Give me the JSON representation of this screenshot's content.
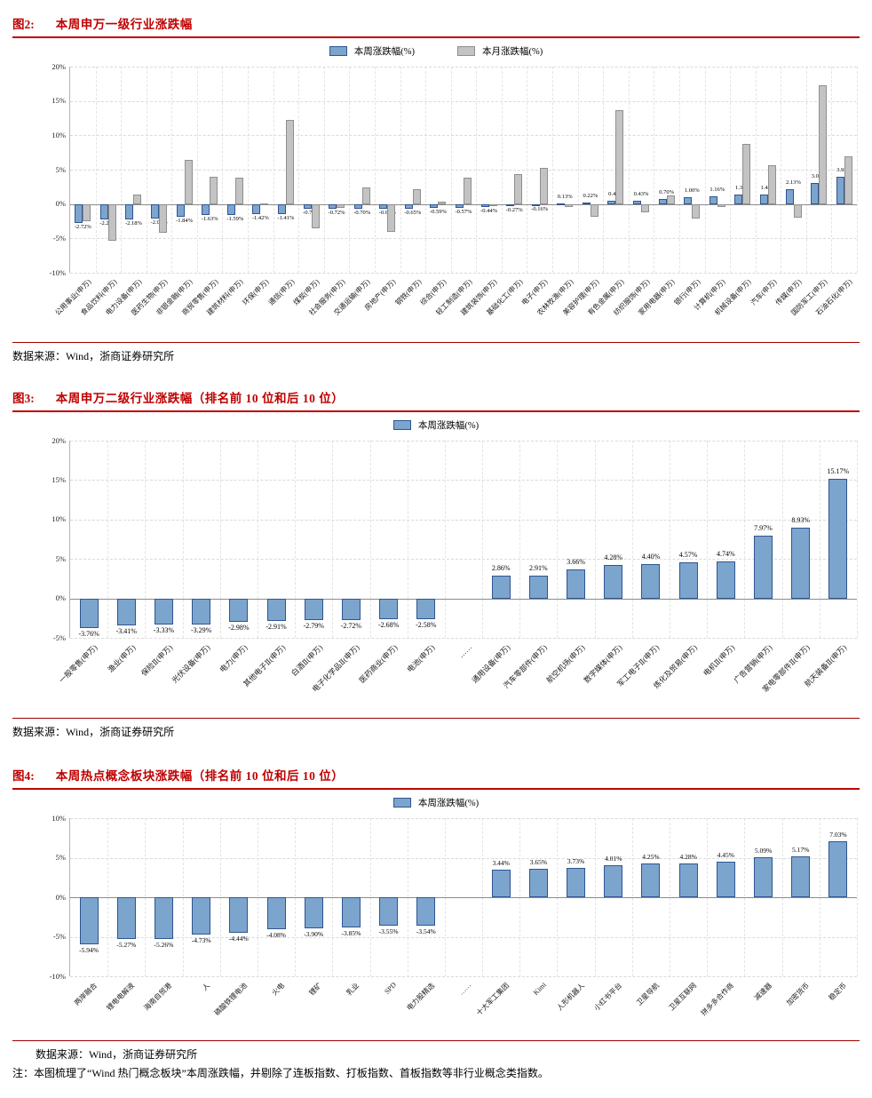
{
  "figures": [
    {
      "label": "图2:",
      "title": "本周申万一级行业涨跌幅",
      "source": "数据来源：Wind，浙商证券研究所"
    },
    {
      "label": "图3:",
      "title": "本周申万二级行业涨跌幅（排名前 10 位和后 10 位）",
      "source": "数据来源：Wind，浙商证券研究所"
    },
    {
      "label": "图4:",
      "title": "本周热点概念板块涨跌幅（排名前 10 位和后 10 位）",
      "source": "数据来源：Wind，浙商证券研究所",
      "note": "注：本图梳理了“Wind 热门概念板块”本周涨跌幅，并剔除了连板指数、打板指数、首板指数等非行业概念类指数。"
    }
  ],
  "colors": {
    "accent_red": "#bf0000",
    "bar_blue": "#7ca5ce",
    "bar_blue_border": "#2f5490",
    "bar_gray": "#c3c3c3",
    "bar_gray_border": "#8f8f8f"
  },
  "chart_data": [
    {
      "type": "bar",
      "title": "本周申万一级行业涨跌幅",
      "legend_position": "top",
      "grid": true,
      "ylim": [
        -10,
        20
      ],
      "yticks": [
        20,
        15,
        10,
        5,
        0,
        -5,
        -10
      ],
      "categories": [
        "公用事业(申万)",
        "食品饮料(申万)",
        "电力设备(申万)",
        "医药生物(申万)",
        "非银金融(申万)",
        "商贸零售(申万)",
        "建筑材料(申万)",
        "环保(申万)",
        "通信(申万)",
        "煤炭(申万)",
        "社会服务(申万)",
        "交通运输(申万)",
        "房地产(申万)",
        "钢铁(申万)",
        "综合(申万)",
        "轻工制造(申万)",
        "建筑装饰(申万)",
        "基础化工(申万)",
        "电子(申万)",
        "农林牧渔(申万)",
        "美容护理(申万)",
        "有色金属(申万)",
        "纺织服饰(申万)",
        "家用电器(申万)",
        "银行(申万)",
        "计算机(申万)",
        "机械设备(申万)",
        "汽车(申万)",
        "传媒(申万)",
        "国防军工(申万)",
        "石油石化(申万)"
      ],
      "series": [
        {
          "name": "本周涨跌幅(%)",
          "color": "#7ca5ce",
          "border": "#2f5490",
          "data_labels": true,
          "values": [
            -2.72,
            -2.26,
            -2.18,
            -2.06,
            -1.84,
            -1.63,
            -1.59,
            -1.42,
            -1.41,
            -0.74,
            -0.72,
            -0.7,
            -0.69,
            -0.65,
            -0.59,
            -0.57,
            -0.44,
            -0.27,
            -0.16,
            0.13,
            0.22,
            0.41,
            0.43,
            0.7,
            1.0,
            1.16,
            1.32,
            1.44,
            2.13,
            3.05,
            3.92
          ]
        },
        {
          "name": "本月涨跌幅(%)",
          "color": "#c3c3c3",
          "border": "#8f8f8f",
          "data_labels": false,
          "values": [
            -2.5,
            -5.3,
            1.4,
            -4.2,
            6.4,
            4.0,
            3.8,
            0.1,
            12.2,
            -3.5,
            -0.6,
            2.4,
            -4.0,
            2.2,
            0.3,
            3.8,
            -0.1,
            4.4,
            5.2,
            -0.4,
            -1.8,
            13.7,
            -1.2,
            1.3,
            -2.1,
            -0.4,
            8.7,
            5.7,
            -2.0,
            17.3,
            7.0
          ]
        }
      ]
    },
    {
      "type": "bar",
      "title": "本周申万二级行业涨跌幅（排名前 10 位和后 10 位）",
      "legend_position": "top",
      "grid": true,
      "ylim": [
        -5,
        20
      ],
      "yticks": [
        20,
        15,
        10,
        5,
        0,
        -5
      ],
      "categories": [
        "一般零售(申万)",
        "渔业(申万)",
        "保险Ⅱ(申万)",
        "光伏设备(申万)",
        "电力(申万)",
        "其他电子Ⅱ(申万)",
        "白酒Ⅱ(申万)",
        "电子化学品Ⅱ(申万)",
        "医药商业(申万)",
        "电池(申万)",
        "……",
        "通用设备(申万)",
        "汽车零部件(申万)",
        "航空机场(申万)",
        "数字媒体(申万)",
        "军工电子Ⅱ(申万)",
        "炼化及贸易(申万)",
        "电机Ⅱ(申万)",
        "广告营销(申万)",
        "家电零部件Ⅱ(申万)",
        "航天装备Ⅱ(申万)"
      ],
      "series": [
        {
          "name": "本周涨跌幅(%)",
          "color": "#7ca5ce",
          "border": "#2f5490",
          "data_labels": true,
          "values": [
            -3.76,
            -3.41,
            -3.33,
            -3.29,
            -2.98,
            -2.91,
            -2.79,
            -2.72,
            -2.68,
            -2.58,
            null,
            2.86,
            2.91,
            3.66,
            4.28,
            4.4,
            4.57,
            4.74,
            7.97,
            8.93,
            15.17
          ]
        }
      ]
    },
    {
      "type": "bar",
      "title": "本周热点概念板块涨跌幅（排名前 10 位和后 10 位）",
      "legend_position": "top",
      "grid": true,
      "ylim": [
        -10,
        10
      ],
      "yticks": [
        10,
        5,
        0,
        -5,
        -10
      ],
      "categories": [
        "两岸融合",
        "锂电电解液",
        "海南自贸港",
        "人",
        "磷酸铁锂电池",
        "火电",
        "锂矿",
        "乳业",
        "SPD",
        "电力股精选",
        "……",
        "十大军工集团",
        "Kimi",
        "人形机器人",
        "小红书平台",
        "卫星导航",
        "卫星互联网",
        "拼多多合作商",
        "减速器",
        "加密货币",
        "稳定币"
      ],
      "series": [
        {
          "name": "本周涨跌幅(%)",
          "color": "#7ca5ce",
          "border": "#2f5490",
          "data_labels": true,
          "values": [
            -5.94,
            -5.27,
            -5.26,
            -4.73,
            -4.44,
            -4.08,
            -3.9,
            -3.85,
            -3.55,
            -3.54,
            null,
            3.44,
            3.65,
            3.73,
            4.01,
            4.25,
            4.28,
            4.45,
            5.09,
            5.17,
            7.03
          ]
        }
      ]
    }
  ]
}
